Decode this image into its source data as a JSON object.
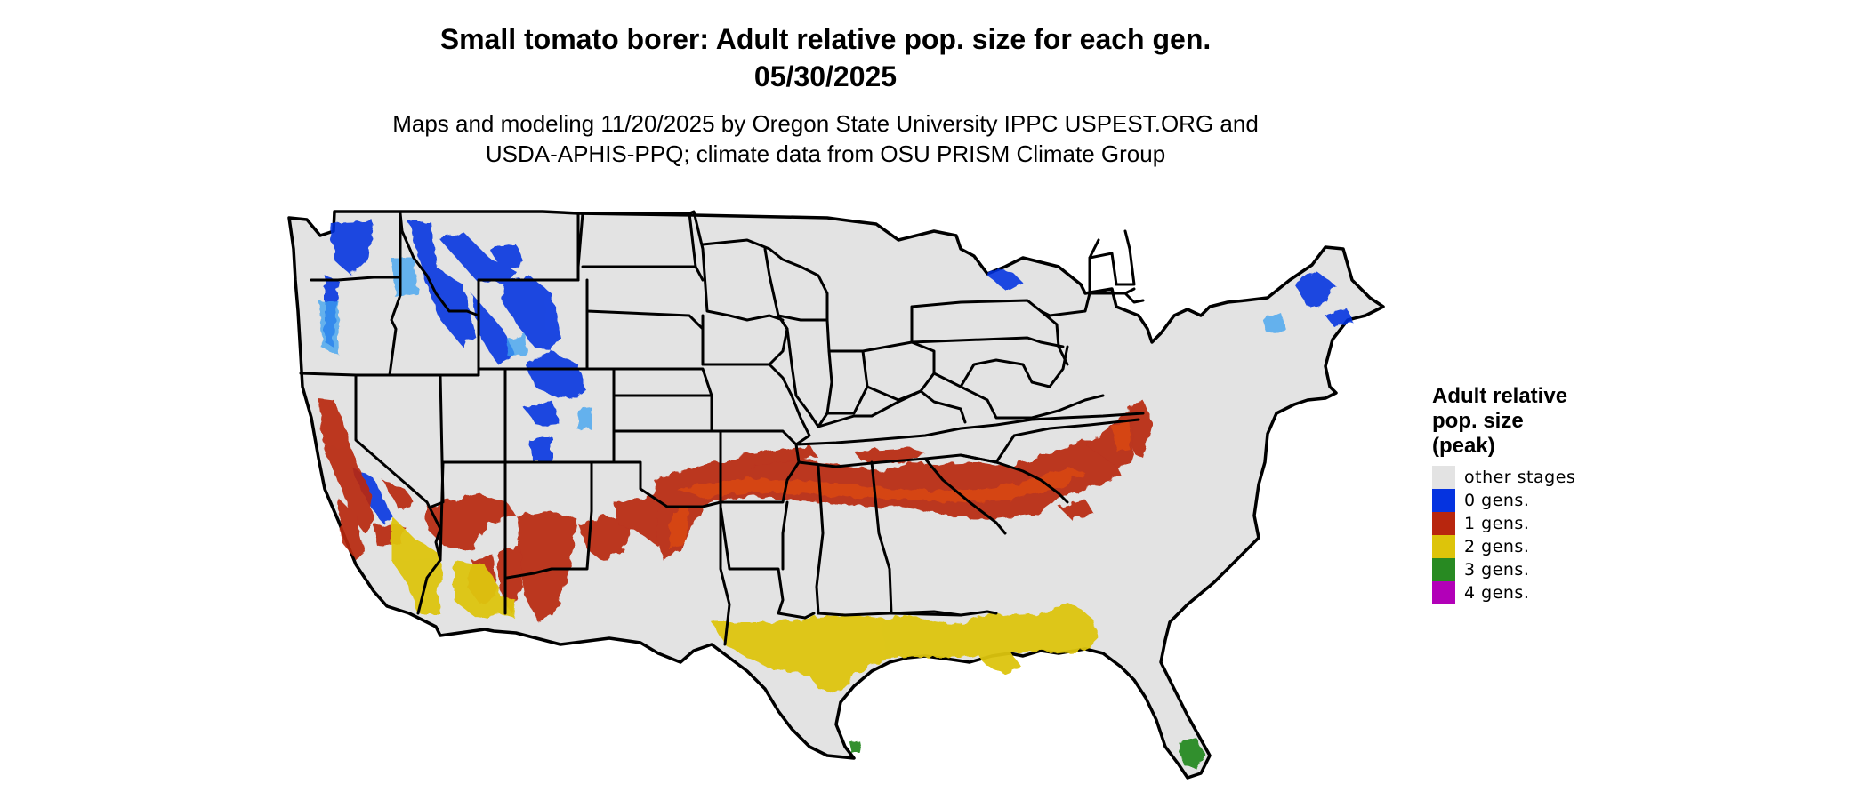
{
  "title": {
    "line1": "Small tomato borer: Adult relative pop. size for each gen.",
    "line2": "05/30/2025"
  },
  "subtitle": {
    "line1": "Maps and modeling 11/20/2025 by Oregon State University IPPC USPEST.ORG and",
    "line2": "USDA-APHIS-PPQ; climate data from OSU PRISM Climate Group"
  },
  "legend": {
    "title": [
      "Adult relative",
      "pop. size",
      "(peak)"
    ],
    "items": [
      {
        "label": "other stages",
        "color": "#e3e3e3"
      },
      {
        "label": "0 gens.",
        "color": "#0533e0"
      },
      {
        "label": "1 gens.",
        "color": "#b8260e"
      },
      {
        "label": "2 gens.",
        "color": "#ddc40a"
      },
      {
        "label": "3 gens.",
        "color": "#288a22"
      },
      {
        "label": "4 gens.",
        "color": "#b200b8"
      }
    ]
  },
  "map": {
    "region": "Contiguous United States",
    "base_color": "#e3e3e3",
    "border_color": "#000000",
    "regions_by_generation": [
      {
        "class": "0 gens.",
        "areas": [
          "Washington Cascades",
          "Idaho",
          "Montana Rockies",
          "Wyoming",
          "Colorado Rockies",
          "Sierra Nevada",
          "northern New England",
          "Great Lakes shoreline"
        ]
      },
      {
        "class": "1 gens.",
        "areas": [
          "California Central Valley",
          "southern Nevada",
          "Arizona/New Mexico uplands",
          "Texas",
          "Oklahoma",
          "Arkansas",
          "Kentucky",
          "Tennessee",
          "Virginia",
          "Maryland",
          "Delaware"
        ]
      },
      {
        "class": "2 gens.",
        "areas": [
          "southeastern California desert",
          "southern Arizona",
          "Gulf Coast Texas",
          "Louisiana",
          "Mississippi",
          "Alabama",
          "Georgia",
          "northern Florida"
        ]
      },
      {
        "class": "3 gens.",
        "areas": [
          "southern Florida",
          "southern tip of Texas"
        ]
      }
    ]
  }
}
